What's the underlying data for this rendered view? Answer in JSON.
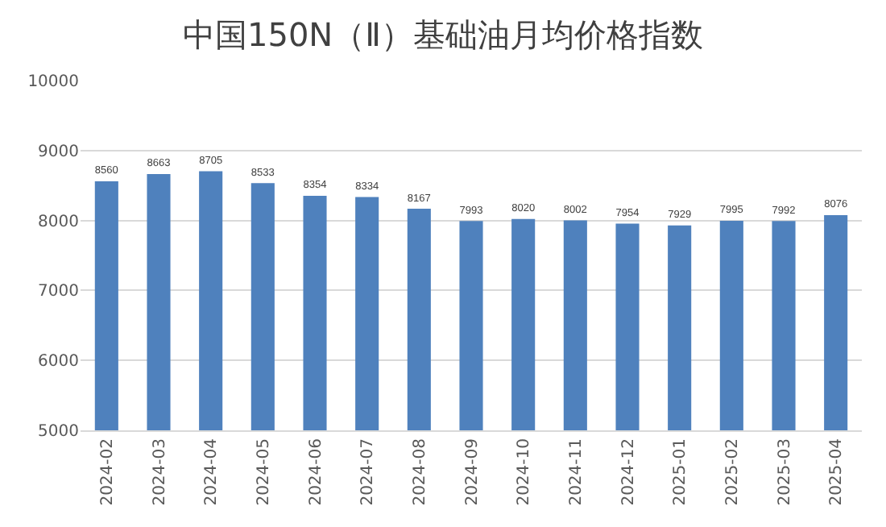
{
  "chart_data": {
    "type": "bar",
    "title": "中国150N（Ⅱ）基础油月均价格指数",
    "categories": [
      "2024-02",
      "2024-03",
      "2024-04",
      "2024-05",
      "2024-06",
      "2024-07",
      "2024-08",
      "2024-09",
      "2024-10",
      "2024-11",
      "2024-12",
      "2025-01",
      "2025-02",
      "2025-03",
      "2025-04"
    ],
    "values": [
      8560,
      8663,
      8705,
      8533,
      8354,
      8334,
      8167,
      7993,
      8020,
      8002,
      7954,
      7929,
      7995,
      7992,
      8076
    ],
    "color": "#4f81bd",
    "ylim": [
      5000,
      10000
    ],
    "yticks": [
      5000,
      6000,
      7000,
      8000,
      9000,
      10000
    ],
    "grid": "y",
    "data_labels": true
  }
}
